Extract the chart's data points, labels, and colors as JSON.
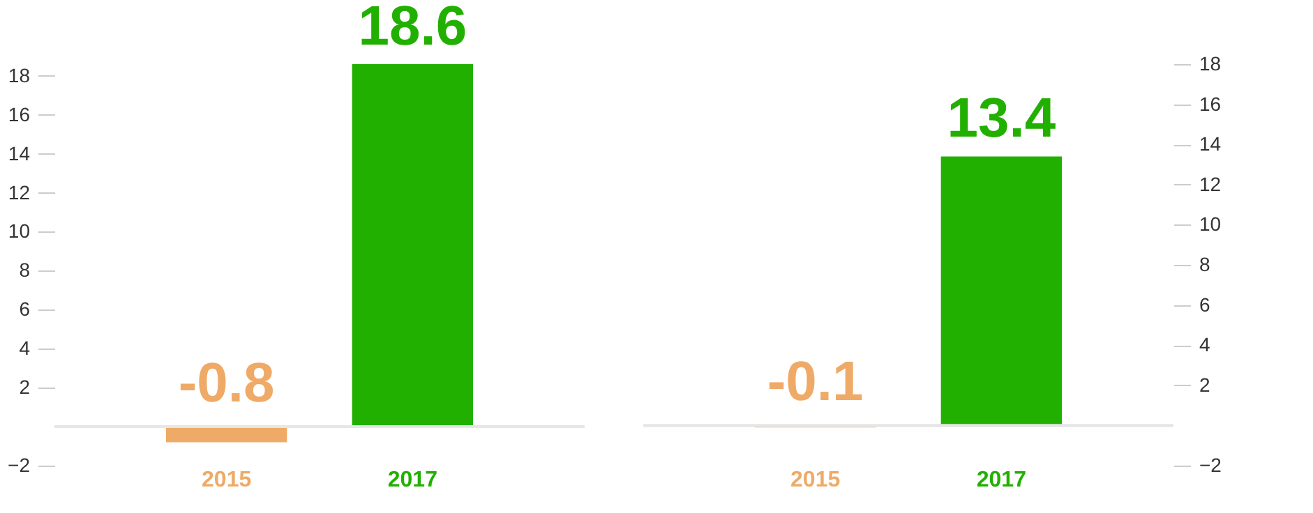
{
  "chart_data": [
    {
      "type": "bar",
      "categories": [
        "2015",
        "2017"
      ],
      "values": [
        -0.8,
        18.6
      ],
      "colors": [
        "#eeaa66",
        "#22b000"
      ],
      "ylim": [
        -2,
        18.6
      ],
      "yticks": [
        -2,
        2,
        4,
        6,
        8,
        10,
        12,
        14,
        16,
        18
      ],
      "data_labels": true,
      "grid": false
    },
    {
      "type": "bar",
      "categories": [
        "2015",
        "2017"
      ],
      "series": [
        {
          "values": [
            -0.1,
            13.4
          ],
          "axis": "y2"
        }
      ],
      "colors": [
        "#eeaa66",
        "#22b000"
      ],
      "y2lim": [
        -2,
        18
      ],
      "y2ticks": [
        -2,
        2,
        4,
        6,
        8,
        10,
        12,
        14,
        16,
        18
      ],
      "data_labels": true,
      "grid": false
    }
  ]
}
